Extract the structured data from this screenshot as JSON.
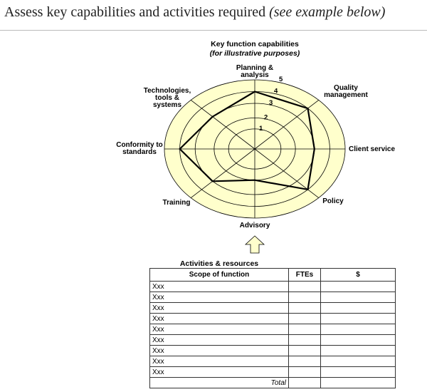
{
  "header": {
    "title": "Assess key capabilities and activities required",
    "title_italic": "(see example below)"
  },
  "chart_data": {
    "type": "radar",
    "title": "Key function capabilities",
    "subtitle": "(for illustrative purposes)",
    "categories": [
      "Planning & analysis",
      "Quality management",
      "Client service",
      "Policy",
      "Advisory",
      "Training",
      "Conformity to standards",
      "Technologies, tools & systems"
    ],
    "scale": [
      1,
      2,
      3,
      4,
      5
    ],
    "range": [
      0,
      5
    ],
    "values": [
      4,
      4,
      3,
      4,
      2,
      3,
      4,
      3
    ],
    "colors": {
      "fill": "#FFFFCC",
      "line": "#000000"
    }
  },
  "arrow": {
    "icon": "up-arrow-icon",
    "fill": "#FFFFCC"
  },
  "table": {
    "title": "Activities & resources",
    "headers": [
      "Scope of function",
      "FTEs",
      "$"
    ],
    "rows": [
      "Xxx",
      "Xxx",
      "Xxx",
      "Xxx",
      "Xxx",
      "Xxx",
      "Xxx",
      "Xxx",
      "Xxx"
    ],
    "total_label": "Total"
  }
}
